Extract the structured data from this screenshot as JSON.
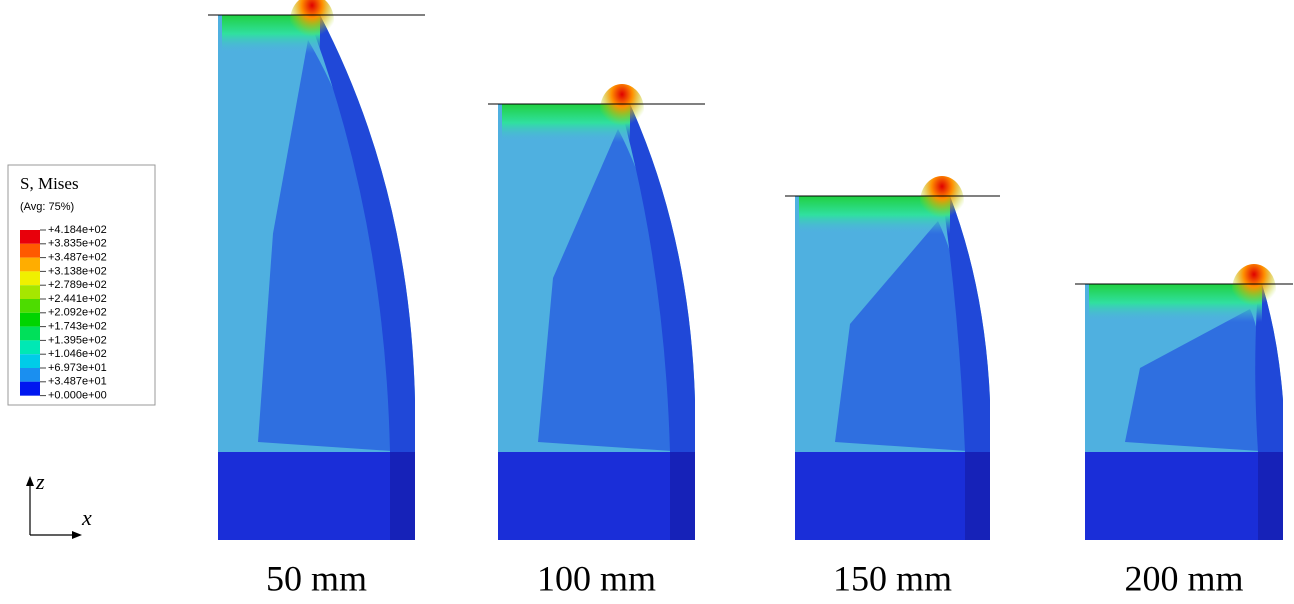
{
  "legend": {
    "title": "S, Mises",
    "subtitle": "(Avg: 75%)",
    "labels": [
      "+4.184e+02",
      "+3.835e+02",
      "+3.487e+02",
      "+3.138e+02",
      "+2.789e+02",
      "+2.441e+02",
      "+2.092e+02",
      "+1.743e+02",
      "+1.395e+02",
      "+1.046e+02",
      "+6.973e+01",
      "+3.487e+01",
      "+0.000e+00"
    ]
  },
  "axes": {
    "vertical": "z",
    "horizontal": "x"
  },
  "captions": [
    "50 mm",
    "100 mm",
    "150 mm",
    "200 mm"
  ]
}
